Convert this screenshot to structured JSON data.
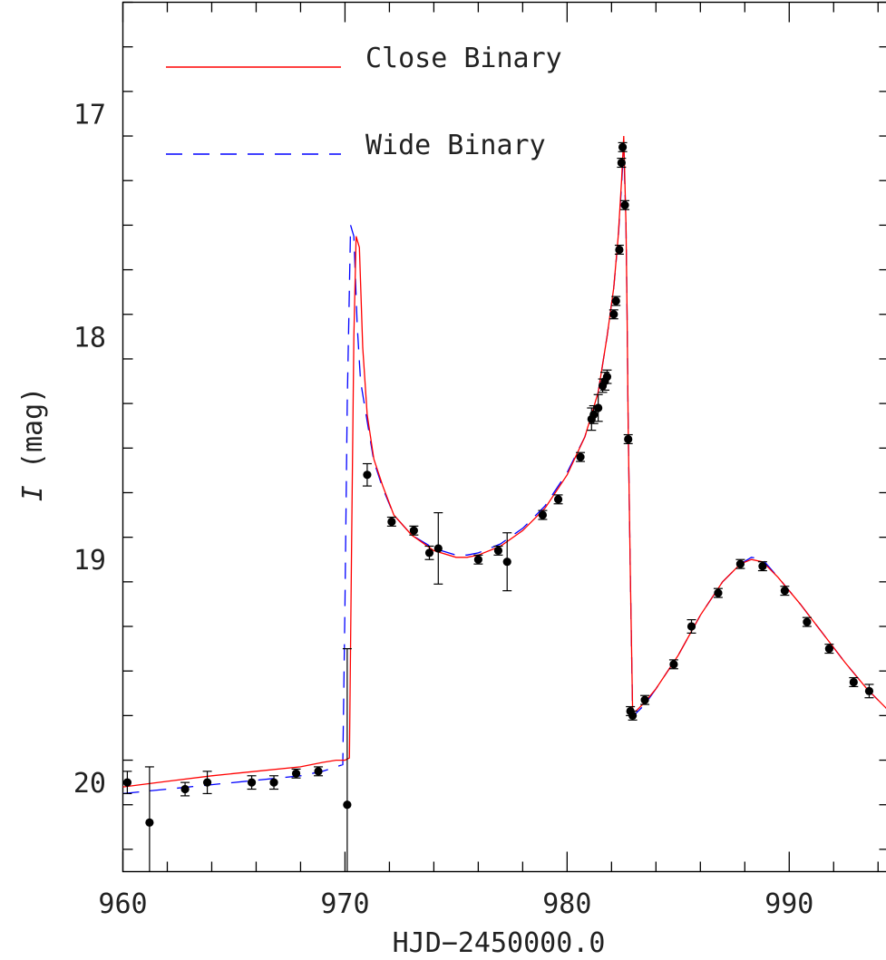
{
  "chart_data": {
    "type": "scatter",
    "xlabel": "HJD−2450000.0",
    "ylabel_italic": "I",
    "ylabel_rest": " (mag)",
    "xlim": [
      960,
      994.5
    ],
    "ylim": [
      20.4,
      16.5
    ],
    "y_inverted": true,
    "x_ticks": [
      960,
      970,
      980,
      990
    ],
    "x_tick_labels": [
      "960",
      "970",
      "980",
      "990"
    ],
    "y_ticks": [
      17,
      18,
      19,
      20
    ],
    "y_tick_labels": [
      "17",
      "18",
      "19",
      "20"
    ],
    "grid": false,
    "legend_position": "top-left",
    "series": [
      {
        "name": "Close Binary",
        "color": "#ff0000",
        "style": "solid",
        "x": [
          960,
          962,
          964,
          966,
          968,
          969,
          969.6,
          970.0,
          970.2,
          970.3,
          970.4,
          970.5,
          970.65,
          970.8,
          971.0,
          971.3,
          971.7,
          972.2,
          973,
          974,
          975,
          975.5,
          976,
          977,
          978,
          979,
          980,
          980.8,
          981.4,
          981.8,
          982.1,
          982.3,
          982.45,
          982.55,
          982.65,
          982.7,
          982.75,
          982.85,
          982.95,
          983.1,
          983.5,
          984,
          985,
          986,
          987,
          987.8,
          988.3,
          988.8,
          989.5,
          990.5,
          991.5,
          992.5,
          993.5,
          994.5
        ],
        "y": [
          20.02,
          19.995,
          19.97,
          19.95,
          19.93,
          19.91,
          19.9,
          19.9,
          19.89,
          18.9,
          18.0,
          17.55,
          17.6,
          18.05,
          18.35,
          18.55,
          18.67,
          18.8,
          18.89,
          18.96,
          18.99,
          18.99,
          18.98,
          18.94,
          18.87,
          18.77,
          18.62,
          18.45,
          18.25,
          18.0,
          17.78,
          17.55,
          17.3,
          17.1,
          17.5,
          17.9,
          18.4,
          19.1,
          19.68,
          19.68,
          19.64,
          19.58,
          19.43,
          19.25,
          19.1,
          19.02,
          19.0,
          19.01,
          19.08,
          19.2,
          19.33,
          19.46,
          19.58,
          19.68
        ]
      },
      {
        "name": "Wide Binary",
        "color": "#0000ff",
        "style": "dashed",
        "x": [
          960,
          962,
          964,
          966,
          968,
          969,
          969.6,
          969.9,
          970.0,
          970.1,
          970.25,
          970.4,
          970.55,
          970.7,
          971.0,
          971.3,
          971.7,
          972.2,
          973,
          974,
          975,
          975.5,
          976,
          977,
          978,
          979,
          980,
          980.8,
          981.4,
          981.8,
          982.1,
          982.3,
          982.45,
          982.55,
          982.65,
          982.7,
          982.75,
          982.85,
          982.95,
          983.1,
          983.5,
          984,
          985,
          986,
          987,
          987.8,
          988.3,
          988.8,
          989.5,
          990.5,
          991.5,
          992.5,
          993.5,
          994.5
        ],
        "y": [
          20.05,
          20.03,
          20.01,
          19.99,
          19.97,
          19.95,
          19.93,
          19.92,
          19.2,
          18.3,
          17.5,
          17.55,
          17.95,
          18.2,
          18.38,
          18.56,
          18.68,
          18.8,
          18.89,
          18.95,
          18.98,
          18.98,
          18.97,
          18.93,
          18.86,
          18.76,
          18.61,
          18.45,
          18.25,
          18.0,
          17.78,
          17.56,
          17.32,
          17.15,
          17.5,
          17.9,
          18.4,
          19.1,
          19.7,
          19.69,
          19.65,
          19.58,
          19.43,
          19.25,
          19.1,
          19.02,
          18.99,
          19.0,
          19.08,
          19.2,
          19.33,
          19.46,
          19.58,
          19.68
        ]
      },
      {
        "name": "",
        "kind": "points",
        "color": "#000000",
        "x": [
          960.2,
          961.2,
          962.8,
          963.8,
          965.8,
          966.8,
          967.8,
          968.8,
          970.1,
          971.0,
          972.1,
          973.1,
          973.8,
          974.2,
          976.0,
          976.9,
          977.3,
          978.9,
          979.6,
          980.6,
          981.1,
          981.2,
          981.4,
          981.6,
          981.7,
          981.8,
          982.1,
          982.2,
          982.35,
          982.45,
          982.5,
          982.6,
          982.75,
          982.85,
          982.95,
          983.5,
          984.8,
          985.6,
          986.8,
          987.8,
          988.8,
          989.8,
          990.8,
          991.8,
          992.9,
          993.6
        ],
        "y": [
          20.0,
          20.18,
          20.03,
          20.0,
          20.0,
          20.0,
          19.96,
          19.95,
          20.1,
          18.62,
          18.83,
          18.87,
          18.97,
          18.95,
          19.0,
          18.96,
          19.01,
          18.8,
          18.73,
          18.54,
          18.37,
          18.35,
          18.32,
          18.22,
          18.2,
          18.18,
          17.9,
          17.84,
          17.61,
          17.22,
          17.15,
          17.41,
          18.46,
          19.68,
          19.7,
          19.63,
          19.47,
          19.3,
          19.15,
          19.02,
          19.03,
          19.14,
          19.28,
          19.4,
          19.55,
          19.59
        ],
        "err": [
          0.05,
          0.25,
          0.03,
          0.05,
          0.03,
          0.03,
          0.02,
          0.02,
          0.7,
          0.05,
          0.02,
          0.02,
          0.03,
          0.16,
          0.02,
          0.02,
          0.13,
          0.02,
          0.02,
          0.02,
          0.05,
          0.04,
          0.06,
          0.03,
          0.04,
          0.03,
          0.02,
          0.02,
          0.02,
          0.02,
          0.02,
          0.02,
          0.02,
          0.02,
          0.02,
          0.02,
          0.02,
          0.03,
          0.02,
          0.02,
          0.02,
          0.02,
          0.02,
          0.02,
          0.02,
          0.03
        ]
      }
    ]
  }
}
